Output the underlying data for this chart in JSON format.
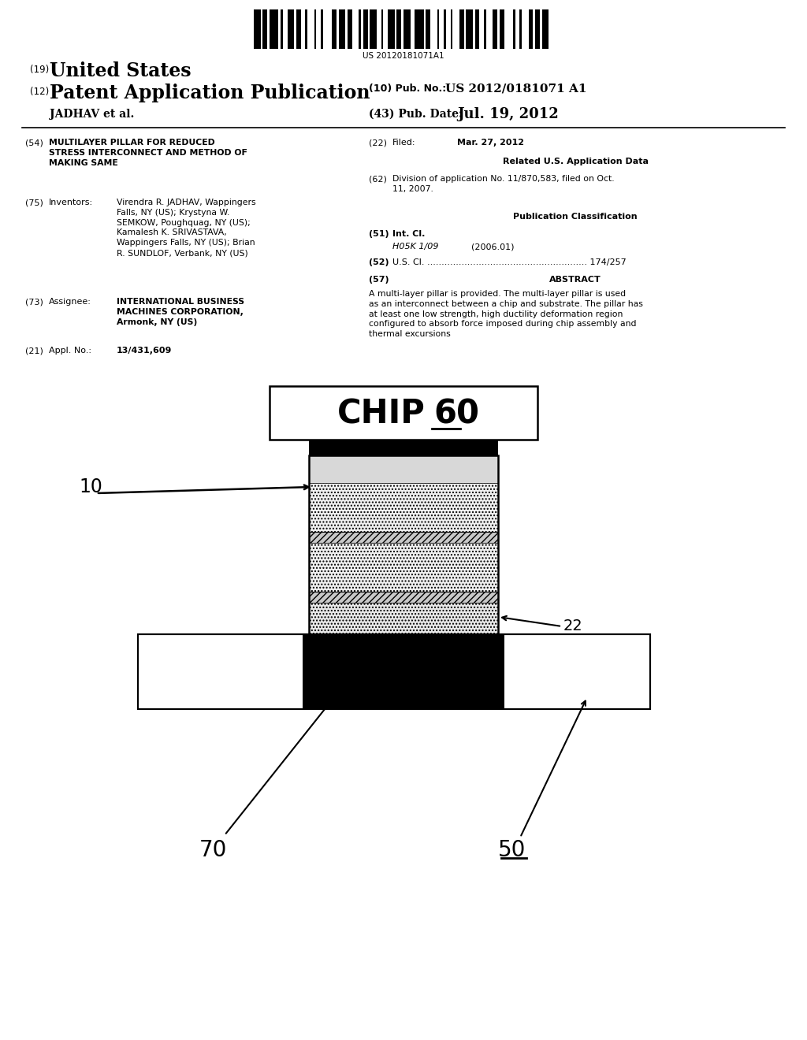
{
  "barcode_text": "US 20120181071A1",
  "header": {
    "line1_label": "(19)",
    "line1_text": "United States",
    "line2_label": "(12)",
    "line2_text": "Patent Application Publication",
    "line3_pub_label": "(10) Pub. No.:",
    "line3_pub_value": "US 2012/0181071 A1",
    "line4_author": "JADHAV et al.",
    "line4_date_label": "(43) Pub. Date:",
    "line4_date_value": "Jul. 19, 2012"
  },
  "left_col": {
    "item54_label": "(54)",
    "item54_text": "MULTILAYER PILLAR FOR REDUCED\nSTRESS INTERCONNECT AND METHOD OF\nMAKING SAME",
    "item75_label": "(75)",
    "item75_title": "Inventors:",
    "item75_text": "Virendra R. JADHAV, Wappingers\nFalls, NY (US); Krystyna W.\nSEMKOW, Poughquag, NY (US);\nKamalesh K. SRIVASTAVA,\nWappingers Falls, NY (US); Brian\nR. SUNDLOF, Verbank, NY (US)",
    "item73_label": "(73)",
    "item73_title": "Assignee:",
    "item73_text": "INTERNATIONAL BUSINESS\nMACHINES CORPORATION,\nArmonk, NY (US)",
    "item21_label": "(21)",
    "item21_title": "Appl. No.:",
    "item21_text": "13/431,609"
  },
  "right_col": {
    "item22_label": "(22)",
    "item22_title": "Filed:",
    "item22_text": "Mar. 27, 2012",
    "related_title": "Related U.S. Application Data",
    "item62_label": "(62)",
    "item62_text": "Division of application No. 11/870,583, filed on Oct.\n11, 2007.",
    "pub_class_title": "Publication Classification",
    "item51_label": "(51)",
    "item51_title": "Int. Cl.",
    "item51_class": "H05K 1/09",
    "item51_year": "(2006.01)",
    "item52_label": "(52)",
    "item52_title": "U.S. Cl.",
    "item52_value": "174/257",
    "item57_label": "(57)",
    "item57_title": "ABSTRACT",
    "item57_text": "A multi-layer pillar is provided. The multi-layer pillar is used\nas an interconnect between a chip and substrate. The pillar has\nat least one low strength, high ductility deformation region\nconfigured to absorb force imposed during chip assembly and\nthermal excursions"
  },
  "diagram": {
    "chip_label": "CHIP",
    "chip_num": "60",
    "label_10": "10",
    "label_22": "22",
    "label_70": "70",
    "label_50": "50"
  }
}
